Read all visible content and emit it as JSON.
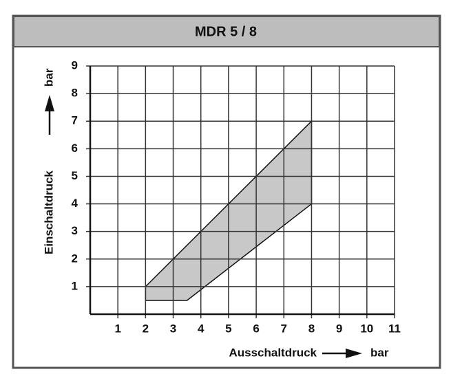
{
  "chart_data": {
    "type": "polygon",
    "title": "MDR 5 / 8",
    "xlabel": "Ausschaltdruck",
    "xunit": "bar",
    "ylabel": "Einschaltdruck",
    "yunit": "bar",
    "series": [
      {
        "x": [
          2,
          8,
          8,
          3.5,
          2
        ],
        "y": [
          1,
          7,
          4,
          0.5,
          0.5
        ],
        "color": "#c8c8c8"
      }
    ],
    "xlim": [
      0,
      11
    ],
    "xticks": [
      1,
      2,
      3,
      4,
      5,
      6,
      7,
      8,
      9,
      10,
      11
    ],
    "ylim": [
      0,
      9
    ],
    "yticks": [
      1,
      2,
      3,
      4,
      5,
      6,
      7,
      8,
      9
    ],
    "grid": true
  }
}
